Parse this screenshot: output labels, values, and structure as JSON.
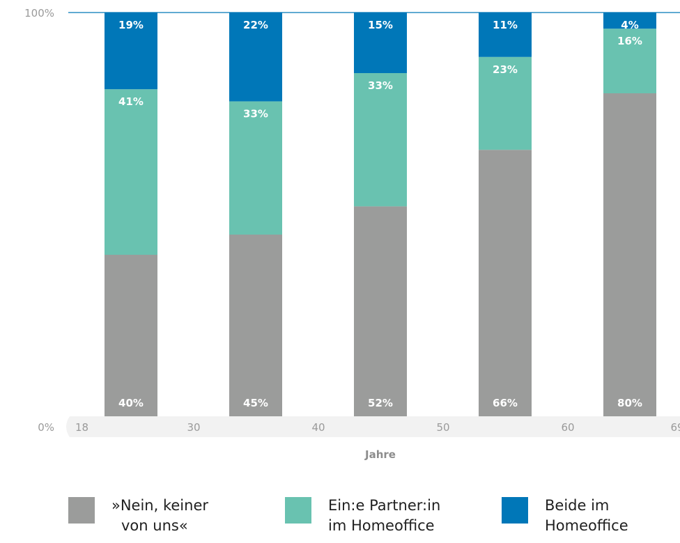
{
  "chart_data": {
    "type": "bar",
    "stacked": true,
    "xlabel": "Jahre",
    "x_ticks": [
      "18",
      "30",
      "40",
      "50",
      "60",
      "69"
    ],
    "y_ticks": [
      "100%",
      "0%"
    ],
    "ylim": [
      0,
      100
    ],
    "categories": [
      "18–29",
      "30–39",
      "40–49",
      "50–59",
      "60–69"
    ],
    "series": [
      {
        "legend_lines": [
          "»Nein, keiner",
          "von uns«"
        ],
        "color": "#9b9c9b",
        "values": [
          40,
          45,
          52,
          66,
          80
        ],
        "labels": [
          "40%",
          "45%",
          "52%",
          "66%",
          "80%"
        ]
      },
      {
        "legend_lines": [
          "Ein:e Partner:in",
          "im Homeoffice"
        ],
        "color": "#69c2b0",
        "values": [
          41,
          33,
          33,
          23,
          16
        ],
        "labels": [
          "41%",
          "33%",
          "33%",
          "23%",
          "16%"
        ]
      },
      {
        "legend_lines": [
          "Beide im",
          "Homeoffice"
        ],
        "color": "#0077b8",
        "values": [
          19,
          22,
          15,
          11,
          4
        ],
        "labels": [
          "19%",
          "22%",
          "15%",
          "11%",
          "4%"
        ]
      }
    ],
    "colors": {
      "axis_line": "#0077b8",
      "baseline_band": "#f2f2f2",
      "axis_text": "#9a9a9a"
    },
    "grid": false,
    "legend_position": "bottom"
  }
}
